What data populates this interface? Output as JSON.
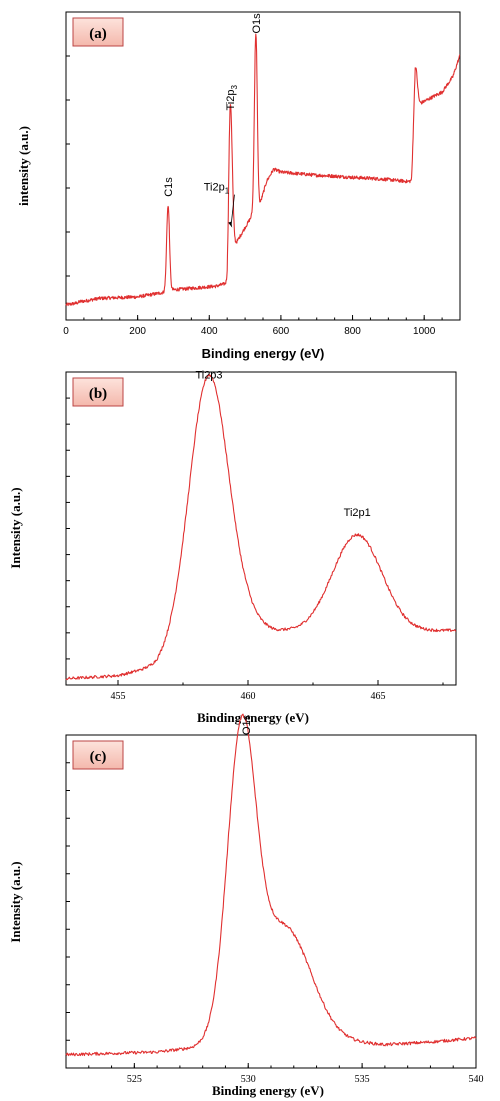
{
  "chart_data": [
    {
      "type": "line",
      "panel_tag": "(a)",
      "xlabel": "Binding energy (eV)",
      "ylabel": "intensity (a.u.)",
      "xlim": [
        0,
        1100
      ],
      "ylim": [
        0,
        100
      ],
      "xticks": [
        0,
        200,
        400,
        600,
        800,
        1000
      ],
      "grid": false,
      "color": "#e03030",
      "baseline": [
        [
          5,
          5
        ],
        [
          30,
          5.5
        ],
        [
          40,
          6
        ],
        [
          55,
          6.2
        ],
        [
          90,
          7
        ],
        [
          130,
          7.2
        ],
        [
          200,
          7.5
        ],
        [
          250,
          8.5
        ],
        [
          275,
          9
        ],
        [
          300,
          9.8
        ],
        [
          340,
          10.2
        ],
        [
          380,
          10.6
        ],
        [
          420,
          11
        ],
        [
          450,
          12
        ],
        [
          455,
          22
        ],
        [
          460,
          22
        ],
        [
          470,
          24
        ],
        [
          480,
          26
        ],
        [
          490,
          28
        ],
        [
          500,
          30
        ],
        [
          510,
          32
        ],
        [
          520,
          34
        ],
        [
          528,
          36
        ],
        [
          540,
          37
        ],
        [
          560,
          45
        ],
        [
          580,
          49
        ],
        [
          600,
          48
        ],
        [
          650,
          47.5
        ],
        [
          700,
          47
        ],
        [
          750,
          46.7
        ],
        [
          800,
          46.3
        ],
        [
          850,
          46
        ],
        [
          900,
          45.6
        ],
        [
          950,
          45
        ],
        [
          965,
          45
        ],
        [
          975,
          70
        ],
        [
          985,
          70
        ],
        [
          1000,
          71
        ],
        [
          1050,
          74
        ],
        [
          1080,
          79
        ],
        [
          1100,
          86
        ]
      ],
      "peaks": [
        {
          "x": 285,
          "height": 28,
          "width": 4
        },
        {
          "x": 458.5,
          "height": 42,
          "width": 4
        },
        {
          "x": 464,
          "height": 14,
          "width": 4
        },
        {
          "x": 530,
          "height": 57,
          "width": 4
        },
        {
          "x": 976,
          "height": 12,
          "width": 5
        }
      ],
      "annotations": [
        {
          "text": "C1s",
          "x": 285,
          "y": 40,
          "rotate": true
        },
        {
          "text": "Ti2p",
          "sub": "1",
          "x": 420,
          "y": 42,
          "rotate": false,
          "arrow_to_x": 464,
          "arrow_to_y": 30
        },
        {
          "text": "Ti2p",
          "sub": "3",
          "x": 458,
          "y": 68,
          "rotate": true
        },
        {
          "text": "O1s",
          "x": 530,
          "y": 93,
          "rotate": true
        }
      ]
    },
    {
      "type": "line",
      "panel_tag": "(b)",
      "xlabel": "Binding energy (eV)",
      "ylabel": "Intensity (a.u.)",
      "xlim": [
        453,
        468
      ],
      "ylim": [
        0,
        100
      ],
      "xticks": [
        455,
        460,
        465
      ],
      "grid": false,
      "color": "#e03030",
      "baseline": [
        [
          453,
          2
        ],
        [
          455,
          3
        ],
        [
          456.5,
          6
        ],
        [
          458,
          16
        ],
        [
          460,
          20
        ],
        [
          461,
          17.5
        ],
        [
          462,
          17
        ],
        [
          464,
          17
        ],
        [
          466,
          17
        ],
        [
          468,
          17.5
        ]
      ],
      "peaks": [
        {
          "x": 458.5,
          "height": 82,
          "width": 0.75
        },
        {
          "x": 464.2,
          "height": 31,
          "width": 0.95
        }
      ],
      "annotations": [
        {
          "text": "Ti2p3",
          "x": 458.5,
          "y": 98,
          "rotate": false
        },
        {
          "text": "Ti2p1",
          "x": 464.2,
          "y": 54,
          "rotate": false
        }
      ]
    },
    {
      "type": "line",
      "panel_tag": "(c)",
      "xlabel": "Binding energy (eV)",
      "ylabel": "Intensity (a.u.)",
      "xlim": [
        522,
        540
      ],
      "ylim": [
        0,
        100
      ],
      "xticks": [
        525,
        530,
        535,
        540
      ],
      "grid": false,
      "color": "#e03030",
      "baseline": [
        [
          522,
          4
        ],
        [
          526,
          4.8
        ],
        [
          527.5,
          6
        ],
        [
          528.5,
          8
        ],
        [
          530,
          12
        ],
        [
          532,
          10
        ],
        [
          534,
          8
        ],
        [
          536,
          7
        ],
        [
          538,
          7.8
        ],
        [
          540,
          9
        ]
      ],
      "peaks": [
        {
          "x": 529.7,
          "height": 86,
          "width": 0.62
        },
        {
          "x": 531.6,
          "height": 32,
          "width": 1.15
        }
      ],
      "annotations": [
        {
          "text": "O1s",
          "x": 529.9,
          "y": 100,
          "rotate": true
        }
      ]
    }
  ]
}
